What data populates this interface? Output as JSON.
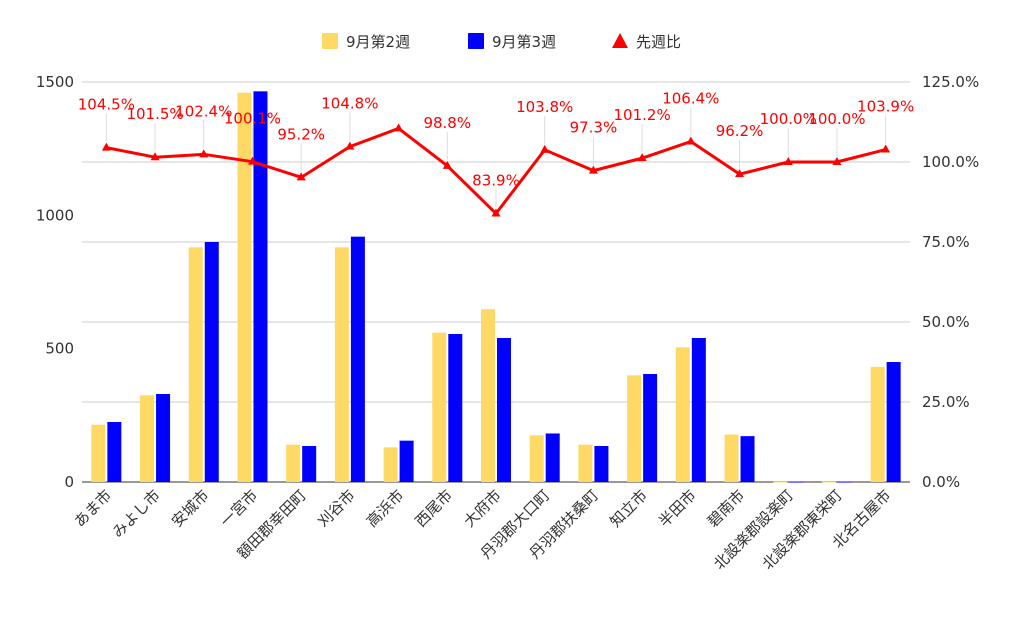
{
  "chart_data": {
    "type": "bar",
    "categories": [
      "あま市",
      "みよし市",
      "安城市",
      "一宮市",
      "額田郡幸田町",
      "刈谷市",
      "高浜市",
      "西尾市",
      "大府市",
      "丹羽郡大口町",
      "丹羽郡扶桑町",
      "知立市",
      "半田市",
      "碧南市",
      "北設楽郡設楽町",
      "北設楽郡東栄町",
      "北名古屋市"
    ],
    "series": [
      {
        "name": "9月第2週",
        "axis": "left",
        "color": "#ffd966",
        "values": [
          215,
          325,
          880,
          1460,
          140,
          880,
          130,
          560,
          648,
          175,
          140,
          400,
          505,
          178,
          1,
          1,
          432
        ]
      },
      {
        "name": "9月第3週",
        "axis": "left",
        "color": "#0000ff",
        "values": [
          225,
          330,
          900,
          1465,
          135,
          920,
          155,
          555,
          540,
          182,
          135,
          405,
          540,
          172,
          1,
          1,
          450
        ]
      },
      {
        "name": "先週比",
        "axis": "right",
        "type": "line",
        "color": "#ff0000",
        "values": [
          1.045,
          1.015,
          1.024,
          1.001,
          0.952,
          1.048,
          1.105,
          0.988,
          0.839,
          1.038,
          0.973,
          1.012,
          1.064,
          0.962,
          1.0,
          1.0,
          1.039
        ],
        "labels": [
          "104.5%",
          "101.5%",
          "102.4%",
          "100.1%",
          "95.2%",
          "104.8%",
          "",
          "98.8%",
          "83.9%",
          "103.8%",
          "97.3%",
          "101.2%",
          "106.4%",
          "96.2%",
          "100.0%",
          "100.0%",
          "103.9%"
        ]
      }
    ],
    "y_left": {
      "ylim": [
        0,
        1500
      ],
      "ticks": [
        "0",
        "500",
        "1000",
        "1500"
      ]
    },
    "y_right": {
      "ylim": [
        0,
        1.25
      ],
      "ticks": [
        "0.0%",
        "25.0%",
        "50.0%",
        "75.0%",
        "100.0%",
        "125.0%"
      ]
    },
    "grid": true,
    "legend": "top-center"
  }
}
